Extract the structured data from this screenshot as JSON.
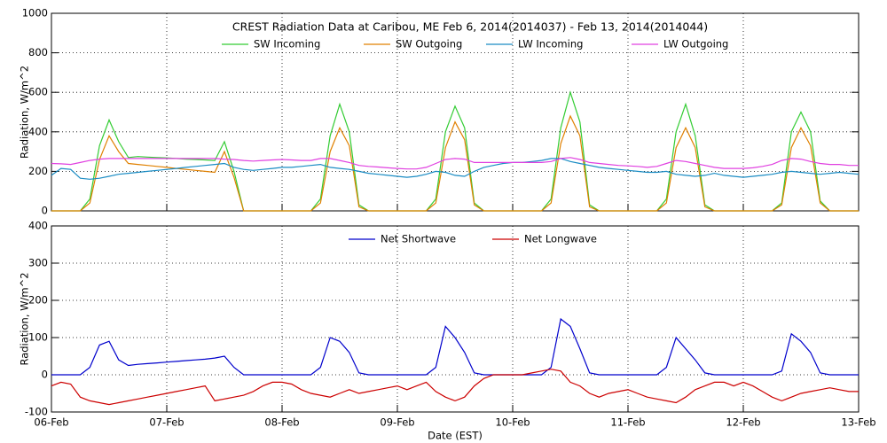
{
  "chart_data": [
    {
      "type": "line",
      "title": "CREST Radiation Data at Caribou, ME   Feb  6, 2014(2014037) - Feb 13, 2014(2014044)",
      "ylabel": "Radiation, W/m^2",
      "x": [
        0,
        2,
        4,
        6,
        8,
        10,
        12,
        14,
        16,
        18,
        20,
        22,
        24,
        26,
        28,
        30,
        32,
        34,
        36,
        38,
        40,
        42,
        44,
        46,
        48,
        50,
        52,
        54,
        56,
        58,
        60,
        62,
        64,
        66,
        68,
        70,
        72,
        74,
        76,
        78,
        80,
        82,
        84,
        86,
        88,
        90,
        92,
        94,
        96,
        98,
        100,
        102,
        104,
        106,
        108,
        110,
        112,
        114,
        116,
        118,
        120,
        122,
        124,
        126,
        128,
        130,
        132,
        134,
        136,
        138,
        140,
        142,
        144,
        146,
        148,
        150,
        152,
        154,
        156,
        158,
        160,
        162,
        164,
        166,
        168
      ],
      "xlim": [
        0,
        168
      ],
      "ylim": [
        0,
        1000
      ],
      "yticks": [
        0,
        200,
        400,
        600,
        800,
        1000
      ],
      "grid": true,
      "series": [
        {
          "name": "SW Incoming",
          "color": "#33cc33",
          "values": [
            0,
            0,
            0,
            0,
            60,
            330,
            460,
            350,
            270,
            275,
            272,
            270,
            268,
            265,
            262,
            260,
            258,
            255,
            350,
            200,
            0,
            0,
            0,
            0,
            0,
            0,
            0,
            0,
            60,
            380,
            540,
            400,
            30,
            0,
            0,
            0,
            0,
            0,
            0,
            0,
            60,
            400,
            530,
            420,
            40,
            0,
            0,
            0,
            0,
            0,
            0,
            0,
            60,
            420,
            600,
            450,
            30,
            0,
            0,
            0,
            0,
            0,
            0,
            0,
            60,
            400,
            540,
            380,
            30,
            0,
            0,
            0,
            0,
            0,
            0,
            0,
            40,
            400,
            500,
            400,
            50,
            0,
            0,
            0,
            0
          ]
        },
        {
          "name": "SW Outgoing",
          "color": "#e08000",
          "values": [
            0,
            0,
            0,
            0,
            40,
            260,
            380,
            300,
            240,
            235,
            230,
            225,
            220,
            215,
            210,
            205,
            200,
            195,
            300,
            170,
            0,
            0,
            0,
            0,
            0,
            0,
            0,
            0,
            40,
            300,
            420,
            330,
            20,
            0,
            0,
            0,
            0,
            0,
            0,
            0,
            40,
            320,
            450,
            360,
            30,
            0,
            0,
            0,
            0,
            0,
            0,
            0,
            40,
            340,
            480,
            380,
            20,
            0,
            0,
            0,
            0,
            0,
            0,
            0,
            40,
            320,
            420,
            320,
            20,
            0,
            0,
            0,
            0,
            0,
            0,
            0,
            30,
            320,
            420,
            330,
            40,
            0,
            0,
            0,
            0
          ]
        },
        {
          "name": "LW Incoming",
          "color": "#1a8cc4",
          "values": [
            180,
            215,
            210,
            165,
            160,
            165,
            175,
            185,
            190,
            195,
            200,
            205,
            210,
            215,
            220,
            225,
            230,
            235,
            240,
            220,
            210,
            205,
            210,
            215,
            220,
            220,
            225,
            230,
            235,
            220,
            215,
            210,
            200,
            190,
            185,
            180,
            175,
            170,
            175,
            185,
            200,
            195,
            180,
            175,
            200,
            220,
            230,
            240,
            245,
            245,
            250,
            255,
            265,
            265,
            250,
            240,
            230,
            220,
            215,
            210,
            205,
            200,
            195,
            195,
            200,
            185,
            180,
            175,
            180,
            190,
            180,
            175,
            170,
            175,
            180,
            185,
            195,
            200,
            195,
            190,
            185,
            190,
            195,
            190,
            185
          ]
        },
        {
          "name": "LW Outgoing",
          "color": "#e040e0",
          "values": [
            240,
            238,
            235,
            245,
            255,
            262,
            265,
            265,
            265,
            265,
            265,
            265,
            265,
            265,
            265,
            265,
            265,
            265,
            262,
            260,
            255,
            252,
            255,
            258,
            260,
            258,
            255,
            255,
            265,
            265,
            255,
            245,
            230,
            225,
            222,
            218,
            215,
            212,
            212,
            220,
            240,
            260,
            265,
            262,
            245,
            245,
            245,
            245,
            245,
            245,
            245,
            245,
            250,
            265,
            270,
            260,
            245,
            240,
            235,
            230,
            228,
            225,
            220,
            225,
            240,
            255,
            250,
            240,
            230,
            220,
            215,
            215,
            215,
            218,
            225,
            235,
            255,
            265,
            262,
            250,
            240,
            235,
            235,
            230,
            230
          ]
        }
      ]
    },
    {
      "type": "line",
      "ylabel": "Radiation, W/m^2",
      "xlabel": "Date (EST)",
      "x": [
        0,
        2,
        4,
        6,
        8,
        10,
        12,
        14,
        16,
        18,
        20,
        22,
        24,
        26,
        28,
        30,
        32,
        34,
        36,
        38,
        40,
        42,
        44,
        46,
        48,
        50,
        52,
        54,
        56,
        58,
        60,
        62,
        64,
        66,
        68,
        70,
        72,
        74,
        76,
        78,
        80,
        82,
        84,
        86,
        88,
        90,
        92,
        94,
        96,
        98,
        100,
        102,
        104,
        106,
        108,
        110,
        112,
        114,
        116,
        118,
        120,
        122,
        124,
        126,
        128,
        130,
        132,
        134,
        136,
        138,
        140,
        142,
        144,
        146,
        148,
        150,
        152,
        154,
        156,
        158,
        160,
        162,
        164,
        166,
        168
      ],
      "xlim": [
        0,
        168
      ],
      "xticks": [
        {
          "value": 0,
          "label": "06-Feb"
        },
        {
          "value": 24,
          "label": "07-Feb"
        },
        {
          "value": 48,
          "label": "08-Feb"
        },
        {
          "value": 72,
          "label": "09-Feb"
        },
        {
          "value": 96,
          "label": "10-Feb"
        },
        {
          "value": 120,
          "label": "11-Feb"
        },
        {
          "value": 144,
          "label": "12-Feb"
        },
        {
          "value": 168,
          "label": "13-Feb"
        }
      ],
      "ylim": [
        -100,
        400
      ],
      "yticks": [
        -100,
        0,
        100,
        200,
        300,
        400
      ],
      "grid": true,
      "series": [
        {
          "name": "Net Shortwave",
          "color": "#0000cc",
          "values": [
            0,
            0,
            0,
            0,
            20,
            80,
            90,
            40,
            25,
            28,
            30,
            32,
            34,
            36,
            38,
            40,
            42,
            45,
            50,
            20,
            0,
            0,
            0,
            0,
            0,
            0,
            0,
            0,
            20,
            100,
            90,
            60,
            5,
            0,
            0,
            0,
            0,
            0,
            0,
            0,
            20,
            130,
            100,
            60,
            5,
            0,
            0,
            0,
            0,
            0,
            0,
            0,
            20,
            150,
            130,
            70,
            5,
            0,
            0,
            0,
            0,
            0,
            0,
            0,
            20,
            100,
            70,
            40,
            5,
            0,
            0,
            0,
            0,
            0,
            0,
            0,
            10,
            110,
            90,
            60,
            5,
            0,
            0,
            0,
            0
          ]
        },
        {
          "name": "Net Longwave",
          "color": "#cc0000",
          "values": [
            -30,
            -20,
            -25,
            -60,
            -70,
            -75,
            -80,
            -75,
            -70,
            -65,
            -60,
            -55,
            -50,
            -45,
            -40,
            -35,
            -30,
            -70,
            -65,
            -60,
            -55,
            -45,
            -30,
            -20,
            -20,
            -25,
            -40,
            -50,
            -55,
            -60,
            -50,
            -40,
            -50,
            -45,
            -40,
            -35,
            -30,
            -40,
            -30,
            -20,
            -45,
            -60,
            -70,
            -60,
            -30,
            -10,
            0,
            0,
            0,
            0,
            5,
            10,
            15,
            10,
            -20,
            -30,
            -50,
            -60,
            -50,
            -45,
            -40,
            -50,
            -60,
            -65,
            -70,
            -75,
            -60,
            -40,
            -30,
            -20,
            -20,
            -30,
            -20,
            -30,
            -45,
            -60,
            -70,
            -60,
            -50,
            -45,
            -40,
            -35,
            -40,
            -45,
            -45
          ]
        }
      ]
    }
  ]
}
